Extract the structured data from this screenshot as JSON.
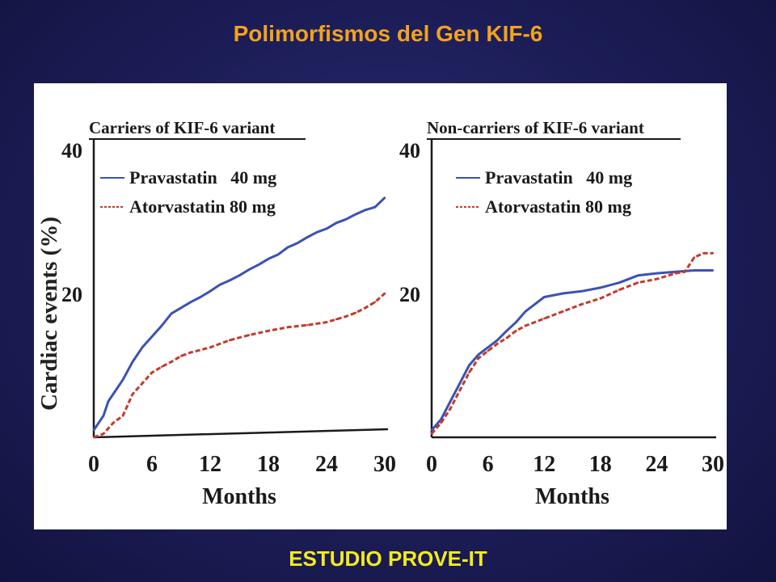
{
  "slide": {
    "title": "Polimorfismos del Gen KIF-6",
    "footer": "ESTUDIO PROVE-IT"
  },
  "colors": {
    "title": "#f3a21c",
    "footer": "#f2ec1c",
    "pravastatin": "#3b52b3",
    "atorvastatin": "#c43a2c"
  },
  "ylabel": "Cardiac events (%)",
  "chart_data": [
    {
      "type": "line",
      "title": "Carriers of KIF-6 variant",
      "xlabel": "Months",
      "ylabel": "Cardiac events (%)",
      "xlim": [
        0,
        30
      ],
      "ylim": [
        0,
        40
      ],
      "xticks": [
        "0",
        "6",
        "12",
        "18",
        "24",
        "30"
      ],
      "yticks": [
        "20",
        "40"
      ],
      "legend": [
        "Pravastatin   40 mg",
        "Atorvastatin 80 mg"
      ],
      "legend_position": "top-left",
      "grid": false,
      "series": [
        {
          "name": "Pravastatin   40 mg",
          "style": "solid",
          "x": [
            0,
            0.5,
            1,
            1.5,
            2,
            3,
            4,
            5,
            6,
            7,
            8,
            9,
            10,
            11,
            12,
            13,
            14,
            15,
            16,
            17,
            18,
            19,
            20,
            21,
            22,
            23,
            24,
            25,
            26,
            27,
            28,
            29,
            30
          ],
          "y": [
            1,
            2,
            3,
            5,
            6,
            8,
            10.5,
            12.5,
            14,
            15.5,
            17.2,
            18,
            18.8,
            19.5,
            20.3,
            21.2,
            21.8,
            22.5,
            23.3,
            24,
            24.8,
            25.4,
            26.4,
            27,
            27.8,
            28.5,
            29,
            29.8,
            30.3,
            31,
            31.6,
            32,
            33.3
          ]
        },
        {
          "name": "Atorvastatin 80 mg",
          "style": "dashed",
          "x": [
            0,
            1,
            2,
            3,
            4,
            5,
            6,
            7,
            8,
            9,
            10,
            12,
            14,
            16,
            18,
            20,
            22,
            24,
            25,
            26,
            27,
            28,
            29,
            30
          ],
          "y": [
            0,
            0.5,
            2,
            3,
            6,
            7.5,
            9,
            9.8,
            10.5,
            11.3,
            11.8,
            12.5,
            13.5,
            14.2,
            14.8,
            15.3,
            15.6,
            16,
            16.4,
            16.8,
            17.3,
            18,
            18.8,
            20
          ]
        }
      ]
    },
    {
      "type": "line",
      "title": "Non-carriers of KIF-6 variant",
      "xlabel": "Months",
      "ylabel": "",
      "xlim": [
        0,
        30
      ],
      "ylim": [
        0,
        40
      ],
      "xticks": [
        "0",
        "6",
        "12",
        "18",
        "24",
        "30"
      ],
      "yticks": [
        "20",
        "40"
      ],
      "legend": [
        "Pravastatin   40 mg",
        "Atorvastatin 80 mg"
      ],
      "legend_position": "top-left",
      "grid": false,
      "series": [
        {
          "name": "Pravastatin   40 mg",
          "style": "solid",
          "x": [
            0,
            1,
            2,
            3,
            4,
            5,
            6,
            7,
            8,
            9,
            10,
            11,
            12,
            14,
            16,
            18,
            20,
            22,
            24,
            26,
            28,
            30
          ],
          "y": [
            1,
            2.5,
            5,
            7.5,
            10,
            11.5,
            12.5,
            13.5,
            14.8,
            16,
            17.5,
            18.5,
            19.5,
            20,
            20.3,
            20.8,
            21.5,
            22.5,
            22.8,
            23,
            23.2,
            23.2
          ]
        },
        {
          "name": "Atorvastatin 80 mg",
          "style": "dashed",
          "x": [
            0,
            1,
            2,
            3,
            4,
            5,
            6,
            7,
            8,
            9,
            10,
            11,
            12,
            14,
            16,
            18,
            20,
            22,
            24,
            26,
            27,
            28,
            29,
            30
          ],
          "y": [
            0.5,
            2,
            4,
            6.5,
            9,
            11,
            12,
            13,
            13.8,
            14.8,
            15.5,
            16,
            16.5,
            17.5,
            18.5,
            19.3,
            20.5,
            21.5,
            22,
            22.8,
            23,
            25,
            25.6,
            25.6
          ]
        }
      ]
    }
  ]
}
